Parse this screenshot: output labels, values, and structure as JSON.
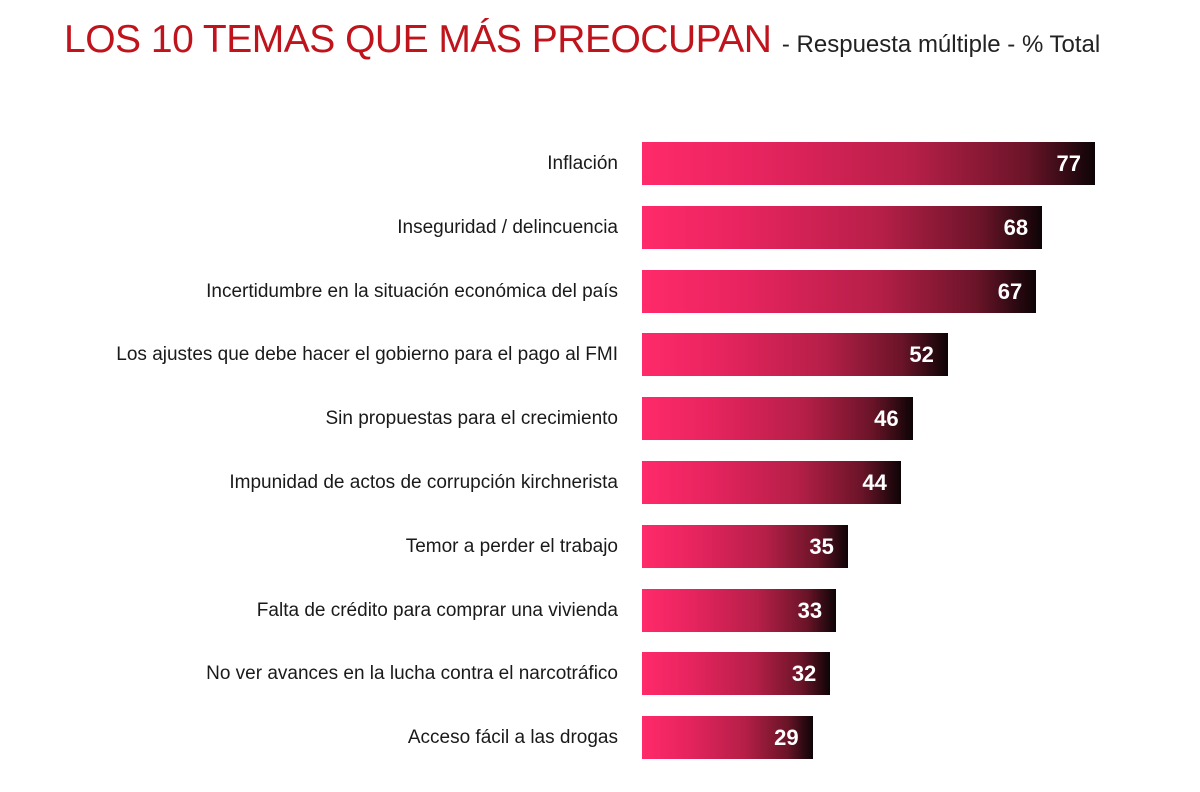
{
  "title": {
    "main": "LOS 10 TEMAS QUE MÁS PREOCUPAN",
    "sub": "- Respuesta múltiple - % Total"
  },
  "chart_data": {
    "type": "bar",
    "orientation": "horizontal",
    "title": "LOS 10 TEMAS QUE MÁS PREOCUPAN",
    "subtitle": "- Respuesta múltiple - % Total",
    "xlabel": "",
    "ylabel": "",
    "unit": "%",
    "grid": false,
    "legend": null,
    "categories": [
      "Inflación",
      "Inseguridad / delincuencia",
      "Incertidumbre en la situación económica del país",
      "Los ajustes que debe hacer el gobierno para el pago al FMI",
      "Sin propuestas para el crecimiento",
      "Impunidad de actos de corrupción kirchnerista",
      "Temor a perder el trabajo",
      "Falta de crédito para comprar una vivienda",
      "No ver avances en la lucha contra el narcotráfico",
      "Acceso fácil a las drogas"
    ],
    "values": [
      77,
      68,
      67,
      52,
      46,
      44,
      35,
      33,
      32,
      29
    ],
    "bar_color_gradient": [
      "#ff2a6a",
      "#0d0406"
    ],
    "label_color": "#ffffff"
  }
}
